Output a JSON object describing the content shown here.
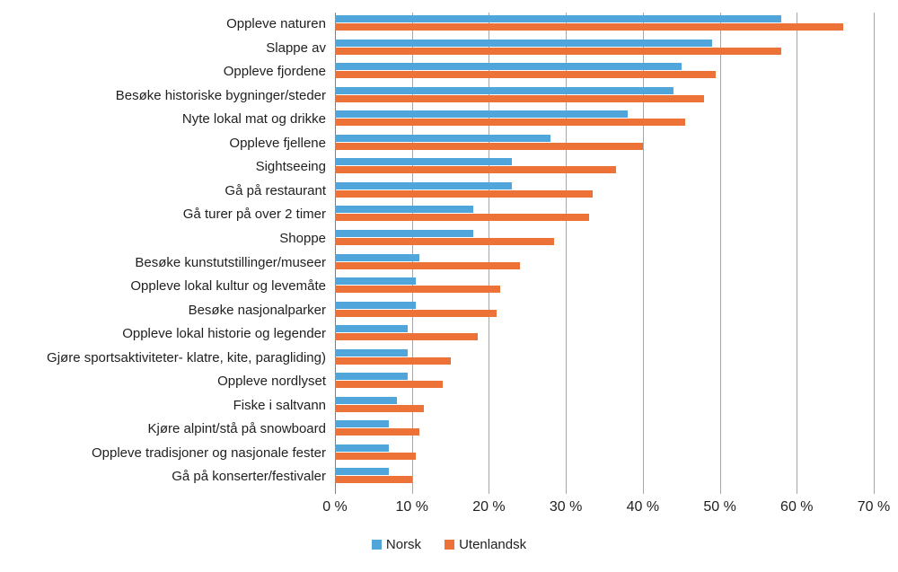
{
  "chart_data": {
    "type": "bar",
    "orientation": "horizontal",
    "title": "",
    "xlabel": "",
    "ylabel": "",
    "categories": [
      "Oppleve naturen",
      "Slappe av",
      "Oppleve fjordene",
      "Besøke historiske bygninger/steder",
      "Nyte lokal mat og drikke",
      "Oppleve fjellene",
      "Sightseeing",
      "Gå på restaurant",
      "Gå turer på over 2 timer",
      "Shoppe",
      "Besøke kunstutstillinger/museer",
      "Oppleve lokal kultur og levemåte",
      "Besøke nasjonalparker",
      "Oppleve lokal historie og legender",
      "Gjøre sportsaktiviteter- klatre, kite, paragliding)",
      "Oppleve nordlyset",
      "Fiske i saltvann",
      "Kjøre alpint/stå på snowboard",
      "Oppleve tradisjoner og nasjonale fester",
      "Gå på konserter/festivaler"
    ],
    "series": [
      {
        "name": "Norsk",
        "color": "#50a6db",
        "values": [
          58,
          49,
          45,
          44,
          38,
          28,
          23,
          23,
          18,
          18,
          11,
          10.5,
          10.5,
          9.5,
          9.5,
          9.5,
          8,
          7,
          7,
          7
        ]
      },
      {
        "name": "Utenlandsk",
        "color": "#ed7237",
        "values": [
          66,
          58,
          49.5,
          48,
          45.5,
          40,
          36.5,
          33.5,
          33,
          28.5,
          24,
          21.5,
          21,
          18.5,
          15,
          14,
          11.5,
          11,
          10.5,
          10
        ]
      }
    ],
    "x_axis": {
      "min": 0,
      "max": 70,
      "tick_labels": [
        "0 %",
        "10 %",
        "20 %",
        "30 %",
        "40 %",
        "50 %",
        "60 %",
        "70 %"
      ],
      "gridlines": "vertical, gray"
    },
    "legend_position": "bottom",
    "colors": {
      "gridline": "#a6a6a6",
      "axis": "#7f7f7f",
      "text": "#1f1f1f",
      "background": "#ffffff"
    }
  }
}
